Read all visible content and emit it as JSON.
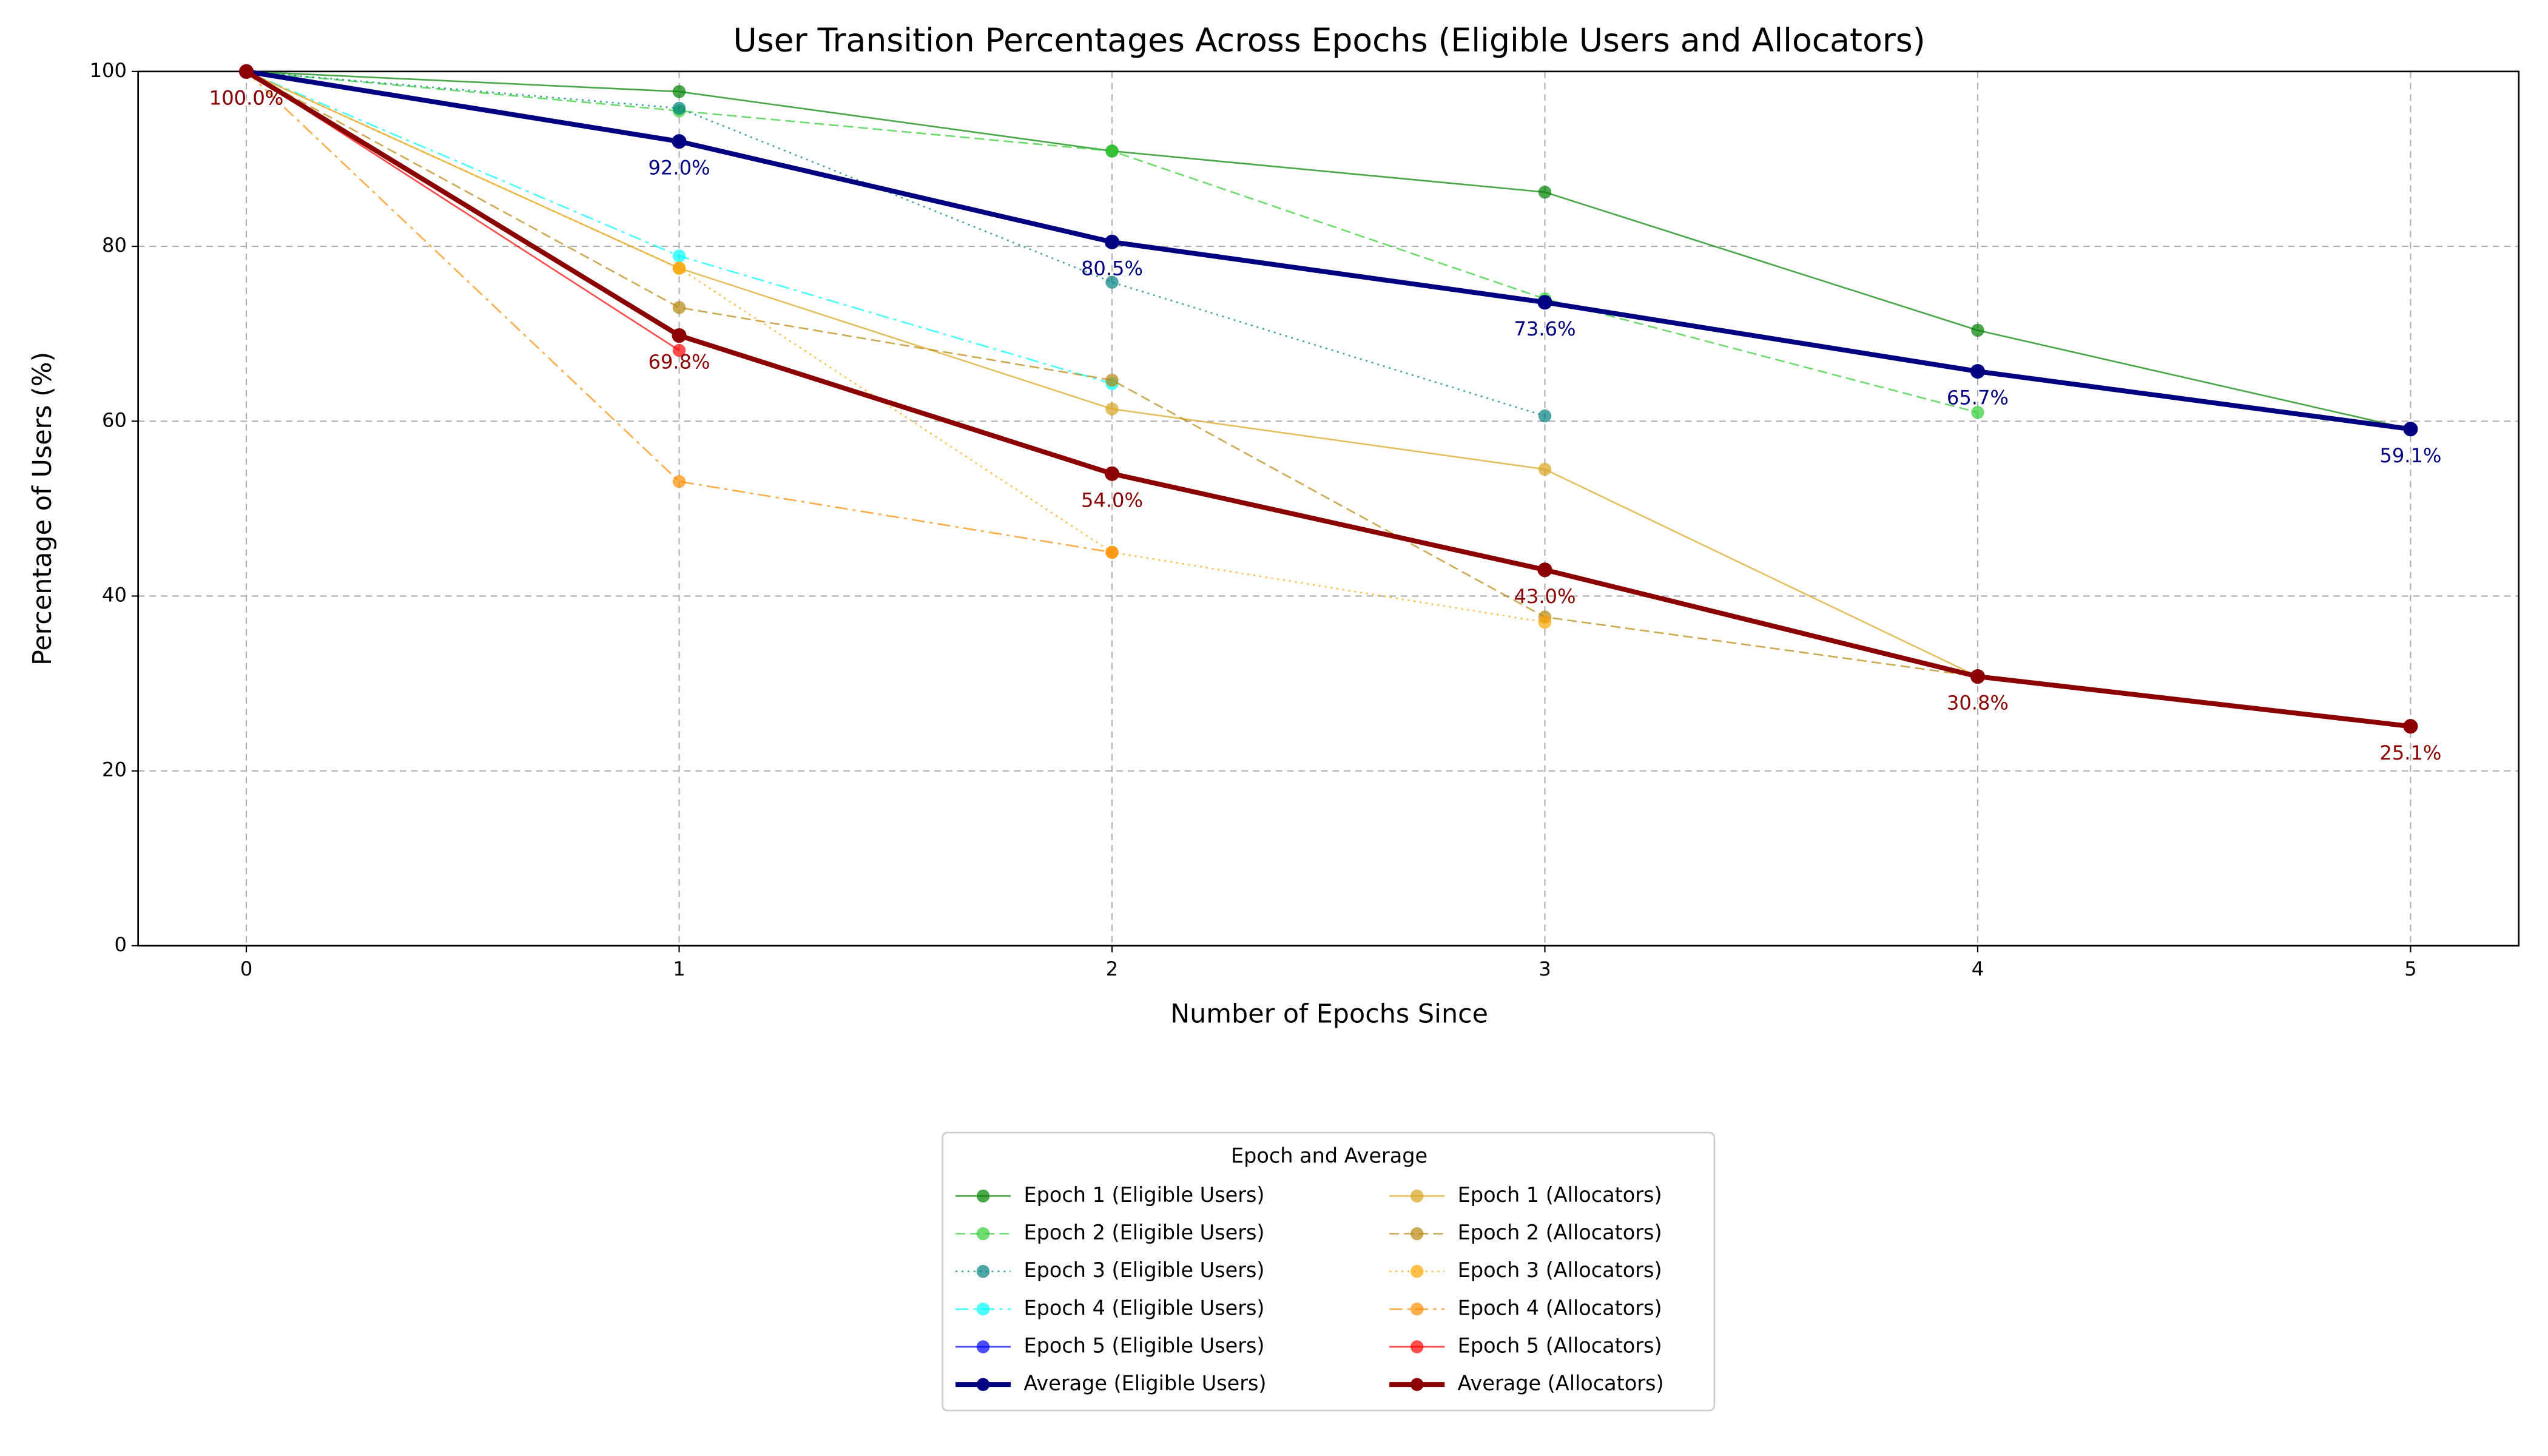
{
  "chart_data": {
    "type": "line",
    "title": "User Transition Percentages Across Epochs (Eligible Users and Allocators)",
    "xlabel": "Number of Epochs Since",
    "ylabel": "Percentage of Users (%)",
    "x": [
      0,
      1,
      2,
      3,
      4,
      5
    ],
    "xlim": [
      -0.25,
      5.25
    ],
    "ylim": [
      0,
      100
    ],
    "xticks": [
      0,
      1,
      2,
      3,
      4,
      5
    ],
    "yticks": [
      0,
      20,
      40,
      60,
      80,
      100
    ],
    "grid": true,
    "legend": {
      "title": "Epoch and Average",
      "columns": 2,
      "loc": "below"
    },
    "series": [
      {
        "name": "Epoch 1 (Eligible Users)",
        "color": "#008000",
        "linestyle": "solid",
        "linewidth": 1,
        "values": [
          100,
          97.7,
          90.9,
          86.2,
          70.4,
          59.1
        ]
      },
      {
        "name": "Epoch 2 (Eligible Users)",
        "color": "#32cd32",
        "linestyle": "dashed",
        "linewidth": 1,
        "values": [
          100,
          95.5,
          90.9,
          74.0,
          61.0,
          null
        ]
      },
      {
        "name": "Epoch 3 (Eligible Users)",
        "color": "#008080",
        "linestyle": "dotted",
        "linewidth": 1,
        "values": [
          100,
          95.8,
          75.9,
          60.6,
          null,
          null
        ]
      },
      {
        "name": "Epoch 4 (Eligible Users)",
        "color": "#00ffff",
        "linestyle": "dashdot",
        "linewidth": 1,
        "values": [
          100,
          78.9,
          64.3,
          null,
          null,
          null
        ]
      },
      {
        "name": "Epoch 5 (Eligible Users)",
        "color": "#0000ff",
        "linestyle": "solid",
        "linewidth": 1,
        "values": [
          100,
          92.0,
          null,
          null,
          null,
          null
        ]
      },
      {
        "name": "Average (Eligible Users)",
        "color": "#000080",
        "linestyle": "solid",
        "linewidth": 3,
        "values": [
          100,
          92.0,
          80.5,
          73.6,
          65.7,
          59.1
        ],
        "value_labels": [
          "100.0%",
          "92.0%",
          "80.5%",
          "73.6%",
          "65.7%",
          "59.1%"
        ]
      },
      {
        "name": "Epoch 1 (Allocators)",
        "color": "#daa520",
        "linestyle": "solid",
        "linewidth": 1,
        "values": [
          100,
          77.5,
          61.4,
          54.5,
          30.8,
          null
        ]
      },
      {
        "name": "Epoch 2 (Allocators)",
        "color": "#b8860b",
        "linestyle": "dashed",
        "linewidth": 1,
        "values": [
          100,
          73.0,
          64.7,
          37.6,
          30.8,
          null
        ]
      },
      {
        "name": "Epoch 3 (Allocators)",
        "color": "#ffa500",
        "linestyle": "dotted",
        "linewidth": 1,
        "values": [
          100,
          77.5,
          45.0,
          37.0,
          null,
          null
        ]
      },
      {
        "name": "Epoch 4 (Allocators)",
        "color": "#ff8c00",
        "linestyle": "dashdot",
        "linewidth": 1,
        "values": [
          100,
          53.1,
          45.0,
          null,
          null,
          null
        ]
      },
      {
        "name": "Epoch 5 (Allocators)",
        "color": "#ff0000",
        "linestyle": "solid",
        "linewidth": 1,
        "values": [
          100,
          68.1,
          null,
          null,
          null,
          null
        ]
      },
      {
        "name": "Average (Allocators)",
        "color": "#8b0000",
        "linestyle": "solid",
        "linewidth": 3,
        "values": [
          100,
          69.8,
          54.0,
          43.0,
          30.8,
          25.1
        ],
        "value_labels": [
          "100.0%",
          "69.8%",
          "54.0%",
          "43.0%",
          "30.8%",
          "25.1%"
        ]
      }
    ]
  }
}
